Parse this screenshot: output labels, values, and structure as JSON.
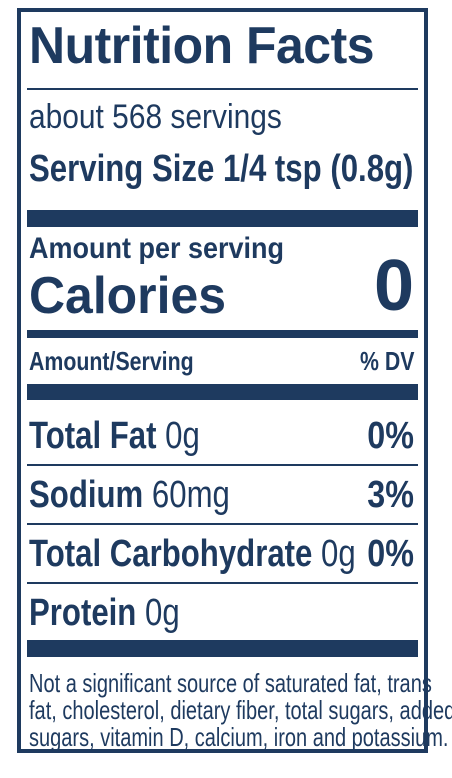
{
  "label": {
    "title": "Nutrition Facts",
    "servings_per_container": "about 568 servings",
    "serving_size": "Serving Size 1/4 tsp (0.8g)",
    "amount_per_serving": "Amount per serving",
    "calories_label": "Calories",
    "calories_value": "0",
    "header_left": "Amount/Serving",
    "header_right": "% DV",
    "nutrients": [
      {
        "name": "Total Fat",
        "amount": "0g",
        "dv": "0%"
      },
      {
        "name": "Sodium",
        "amount": "60mg",
        "dv": "3%"
      },
      {
        "name": "Total Carbohydrate",
        "amount": "0g",
        "dv": "0%"
      },
      {
        "name": "Protein",
        "amount": "0g",
        "dv": ""
      }
    ],
    "footnote_lines": [
      "Not a significant source of saturated fat, trans",
      "fat, cholesterol, dietary fiber, total sugars, added",
      "sugars, vitamin D, calcium, iron and potassium."
    ]
  },
  "colors": {
    "ink": "#1e3a5f",
    "background": "#ffffff"
  }
}
